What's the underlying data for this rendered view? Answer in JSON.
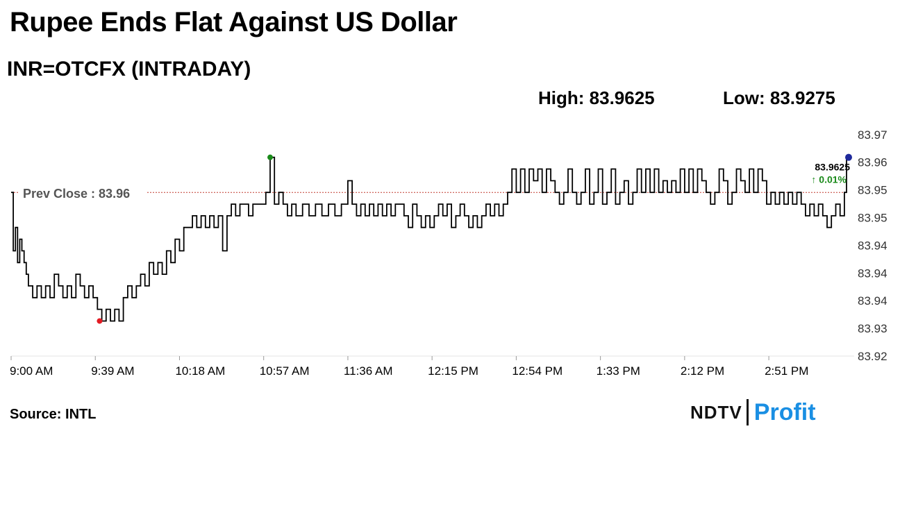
{
  "header": {
    "title": "Rupee Ends Flat Against US Dollar",
    "subtitle": "INR=OTCFX (INTRADAY)",
    "high_text": "High: 83.9625",
    "low_text": "Low: 83.9275"
  },
  "footer": {
    "source": "Source: INTL",
    "logo_primary": "NDTV",
    "logo_secondary": "Profit"
  },
  "colors": {
    "line": "#000000",
    "prev_close_line": "#c0392b",
    "high_dot": "#1a8a1a",
    "low_dot": "#e31b23",
    "last_dot": "#1f2a9c",
    "change": "#1a8a1a",
    "logo_accent": "#1a8fe3"
  },
  "chart_data": {
    "type": "line",
    "title": "INR=OTCFX (INTRADAY)",
    "xlabel": "",
    "ylabel": "",
    "x_ticks": [
      "9:00 AM",
      "9:39 AM",
      "10:18 AM",
      "10:57 AM",
      "11:36 AM",
      "12:15 PM",
      "12:54 PM",
      "1:33 PM",
      "2:12 PM",
      "2:51 PM"
    ],
    "x_range_minutes": [
      0,
      387
    ],
    "y_ticks": [
      "83.92",
      "83.93",
      "83.94",
      "83.94",
      "83.94",
      "83.95",
      "83.95",
      "83.96",
      "83.97"
    ],
    "ylim": [
      83.92,
      83.9675
    ],
    "prev_close": {
      "label": "Prev Close : 83.96",
      "value": 83.955
    },
    "high": {
      "value": 83.9625,
      "minute": 120
    },
    "low": {
      "value": 83.9275,
      "minute": 41
    },
    "last": {
      "label": "83.9625",
      "change_label": "↑ 0.01%",
      "value": 83.9625,
      "minute": 387
    },
    "series": [
      {
        "values": [
          [
            0,
            83.955
          ],
          [
            1,
            83.9425
          ],
          [
            2,
            83.9475
          ],
          [
            3,
            83.94
          ],
          [
            4,
            83.945
          ],
          [
            5,
            83.9425
          ],
          [
            6,
            83.94
          ],
          [
            7,
            83.9375
          ],
          [
            8,
            83.935
          ],
          [
            10,
            83.9325
          ],
          [
            12,
            83.935
          ],
          [
            14,
            83.9325
          ],
          [
            16,
            83.935
          ],
          [
            18,
            83.9325
          ],
          [
            20,
            83.9375
          ],
          [
            22,
            83.935
          ],
          [
            24,
            83.9325
          ],
          [
            26,
            83.935
          ],
          [
            28,
            83.9325
          ],
          [
            30,
            83.9375
          ],
          [
            32,
            83.935
          ],
          [
            34,
            83.9325
          ],
          [
            36,
            83.935
          ],
          [
            38,
            83.9325
          ],
          [
            40,
            83.93
          ],
          [
            42,
            83.9275
          ],
          [
            44,
            83.93
          ],
          [
            46,
            83.9275
          ],
          [
            48,
            83.93
          ],
          [
            50,
            83.9275
          ],
          [
            52,
            83.9325
          ],
          [
            54,
            83.935
          ],
          [
            56,
            83.9325
          ],
          [
            58,
            83.935
          ],
          [
            60,
            83.9375
          ],
          [
            62,
            83.935
          ],
          [
            64,
            83.94
          ],
          [
            66,
            83.9375
          ],
          [
            68,
            83.94
          ],
          [
            70,
            83.9375
          ],
          [
            72,
            83.9425
          ],
          [
            74,
            83.94
          ],
          [
            76,
            83.945
          ],
          [
            78,
            83.9425
          ],
          [
            80,
            83.9475
          ],
          [
            82,
            83.9475
          ],
          [
            84,
            83.95
          ],
          [
            86,
            83.9475
          ],
          [
            88,
            83.95
          ],
          [
            90,
            83.9475
          ],
          [
            92,
            83.95
          ],
          [
            94,
            83.9475
          ],
          [
            96,
            83.95
          ],
          [
            98,
            83.9425
          ],
          [
            100,
            83.95
          ],
          [
            102,
            83.9525
          ],
          [
            104,
            83.95
          ],
          [
            106,
            83.9525
          ],
          [
            108,
            83.9525
          ],
          [
            110,
            83.95
          ],
          [
            112,
            83.9525
          ],
          [
            114,
            83.9525
          ],
          [
            116,
            83.9525
          ],
          [
            118,
            83.955
          ],
          [
            120,
            83.9625
          ],
          [
            122,
            83.9525
          ],
          [
            124,
            83.955
          ],
          [
            126,
            83.9525
          ],
          [
            128,
            83.95
          ],
          [
            130,
            83.9525
          ],
          [
            132,
            83.95
          ],
          [
            135,
            83.9525
          ],
          [
            138,
            83.95
          ],
          [
            141,
            83.9525
          ],
          [
            144,
            83.95
          ],
          [
            147,
            83.9525
          ],
          [
            150,
            83.95
          ],
          [
            153,
            83.9525
          ],
          [
            156,
            83.9575
          ],
          [
            158,
            83.9525
          ],
          [
            160,
            83.95
          ],
          [
            162,
            83.9525
          ],
          [
            164,
            83.95
          ],
          [
            166,
            83.9525
          ],
          [
            168,
            83.95
          ],
          [
            170,
            83.9525
          ],
          [
            172,
            83.95
          ],
          [
            174,
            83.9525
          ],
          [
            176,
            83.95
          ],
          [
            178,
            83.9525
          ],
          [
            180,
            83.9525
          ],
          [
            182,
            83.95
          ],
          [
            184,
            83.9475
          ],
          [
            186,
            83.9525
          ],
          [
            188,
            83.95
          ],
          [
            190,
            83.9475
          ],
          [
            192,
            83.95
          ],
          [
            194,
            83.9475
          ],
          [
            196,
            83.95
          ],
          [
            198,
            83.9525
          ],
          [
            200,
            83.95
          ],
          [
            202,
            83.9525
          ],
          [
            204,
            83.9475
          ],
          [
            206,
            83.95
          ],
          [
            208,
            83.9525
          ],
          [
            210,
            83.95
          ],
          [
            212,
            83.9475
          ],
          [
            214,
            83.95
          ],
          [
            216,
            83.9475
          ],
          [
            218,
            83.95
          ],
          [
            220,
            83.9525
          ],
          [
            222,
            83.95
          ],
          [
            224,
            83.9525
          ],
          [
            226,
            83.95
          ],
          [
            228,
            83.9525
          ],
          [
            230,
            83.955
          ],
          [
            232,
            83.96
          ],
          [
            234,
            83.955
          ],
          [
            236,
            83.96
          ],
          [
            238,
            83.955
          ],
          [
            240,
            83.96
          ],
          [
            242,
            83.9575
          ],
          [
            244,
            83.96
          ],
          [
            246,
            83.955
          ],
          [
            248,
            83.96
          ],
          [
            250,
            83.9575
          ],
          [
            252,
            83.955
          ],
          [
            254,
            83.9525
          ],
          [
            256,
            83.955
          ],
          [
            258,
            83.96
          ],
          [
            260,
            83.955
          ],
          [
            262,
            83.9525
          ],
          [
            264,
            83.955
          ],
          [
            266,
            83.96
          ],
          [
            268,
            83.9525
          ],
          [
            270,
            83.955
          ],
          [
            272,
            83.96
          ],
          [
            274,
            83.9525
          ],
          [
            276,
            83.955
          ],
          [
            278,
            83.96
          ],
          [
            280,
            83.9525
          ],
          [
            282,
            83.955
          ],
          [
            284,
            83.9575
          ],
          [
            286,
            83.9525
          ],
          [
            288,
            83.955
          ],
          [
            290,
            83.96
          ],
          [
            292,
            83.955
          ],
          [
            294,
            83.96
          ],
          [
            296,
            83.955
          ],
          [
            298,
            83.96
          ],
          [
            300,
            83.955
          ],
          [
            302,
            83.9575
          ],
          [
            304,
            83.955
          ],
          [
            306,
            83.9575
          ],
          [
            308,
            83.955
          ],
          [
            310,
            83.96
          ],
          [
            312,
            83.955
          ],
          [
            314,
            83.96
          ],
          [
            316,
            83.955
          ],
          [
            318,
            83.96
          ],
          [
            320,
            83.9575
          ],
          [
            322,
            83.955
          ],
          [
            324,
            83.9525
          ],
          [
            326,
            83.955
          ],
          [
            328,
            83.96
          ],
          [
            330,
            83.9575
          ],
          [
            332,
            83.9525
          ],
          [
            334,
            83.955
          ],
          [
            336,
            83.96
          ],
          [
            338,
            83.9575
          ],
          [
            340,
            83.955
          ],
          [
            342,
            83.96
          ],
          [
            344,
            83.955
          ],
          [
            346,
            83.96
          ],
          [
            348,
            83.9575
          ],
          [
            350,
            83.9525
          ],
          [
            352,
            83.955
          ],
          [
            354,
            83.9525
          ],
          [
            356,
            83.955
          ],
          [
            358,
            83.9525
          ],
          [
            360,
            83.955
          ],
          [
            362,
            83.9525
          ],
          [
            364,
            83.955
          ],
          [
            366,
            83.9525
          ],
          [
            368,
            83.95
          ],
          [
            370,
            83.9525
          ],
          [
            372,
            83.95
          ],
          [
            374,
            83.9525
          ],
          [
            376,
            83.95
          ],
          [
            378,
            83.9475
          ],
          [
            380,
            83.95
          ],
          [
            382,
            83.9525
          ],
          [
            384,
            83.95
          ],
          [
            386,
            83.955
          ],
          [
            387,
            83.9625
          ]
        ]
      }
    ]
  }
}
